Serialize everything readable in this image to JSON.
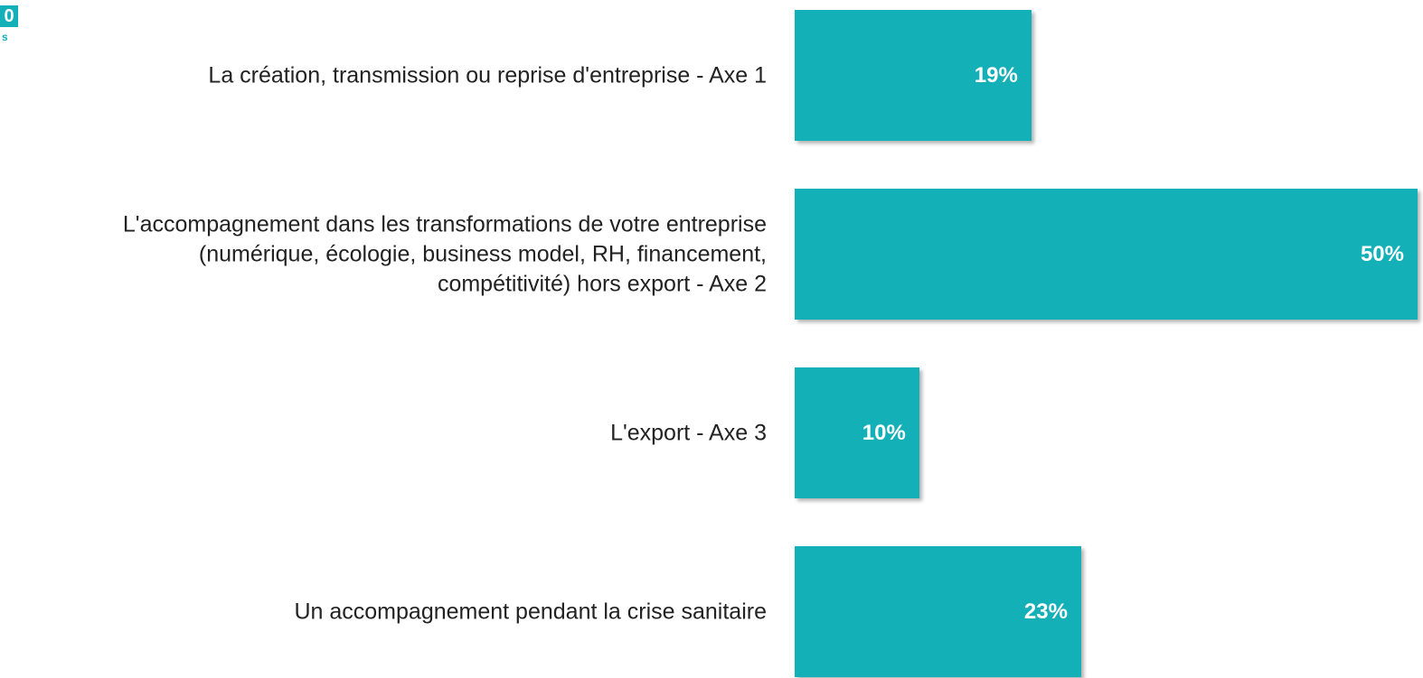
{
  "badge": {
    "number": "0",
    "caption": "s"
  },
  "chart_data": {
    "type": "hbar",
    "categories": [
      "La création, transmission ou reprise d'entreprise - Axe 1",
      "L'accompagnement dans les transformations de votre entreprise\n(numérique, écologie, business model, RH, financement,\ncompétitivité) hors export - Axe 2",
      "L'export - Axe 3",
      "Un accompagnement pendant la crise sanitaire"
    ],
    "values": [
      19,
      50,
      10,
      23
    ],
    "value_labels": [
      "19%",
      "50%",
      "10%",
      "23%"
    ],
    "color": "#14b0b8",
    "xlim": [
      0,
      50
    ]
  }
}
